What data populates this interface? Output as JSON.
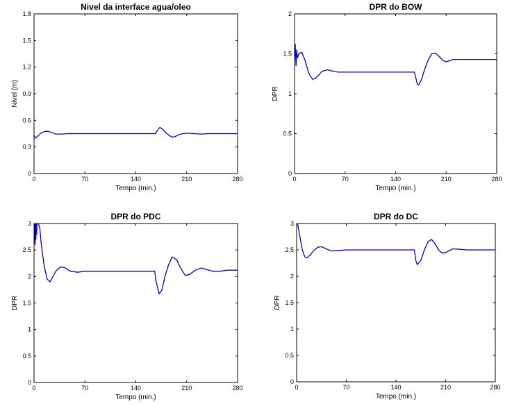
{
  "chart_data": [
    {
      "type": "line",
      "title": "Nivel da interface agua/oleo",
      "xlabel": "Tempo (min.)",
      "ylabel": "Nivel (m)",
      "xlim": [
        0,
        280
      ],
      "ylim": [
        0,
        1.8
      ],
      "xticks": [
        0,
        70,
        140,
        210,
        280
      ],
      "yticks": [
        0,
        0.3,
        0.6,
        0.9,
        1.2,
        1.5,
        1.8
      ],
      "xtick_labels": [
        "0",
        "70",
        "140",
        "210",
        "280"
      ],
      "ytick_labels": [
        "0",
        "0.3",
        "0.6",
        "0.9",
        "1.2",
        "1.5",
        "1.8"
      ],
      "grid": false,
      "series": [
        {
          "color": "#0000cc",
          "x": [
            0,
            2,
            5,
            10,
            15,
            20,
            25,
            30,
            38,
            45,
            60,
            90,
            120,
            150,
            167,
            170,
            173,
            177,
            180,
            186,
            190,
            195,
            200,
            205,
            210,
            220,
            230,
            240,
            250,
            280
          ],
          "y": [
            0.43,
            0.4,
            0.42,
            0.46,
            0.475,
            0.475,
            0.46,
            0.445,
            0.445,
            0.45,
            0.45,
            0.45,
            0.45,
            0.45,
            0.45,
            0.49,
            0.52,
            0.5,
            0.47,
            0.43,
            0.41,
            0.42,
            0.44,
            0.45,
            0.455,
            0.45,
            0.445,
            0.45,
            0.45,
            0.45
          ]
        }
      ]
    },
    {
      "type": "line",
      "title": "DPR do BOW",
      "xlabel": "Tempo (min.)",
      "ylabel": "DPR",
      "xlim": [
        0,
        280
      ],
      "ylim": [
        0,
        2
      ],
      "xticks": [
        0,
        70,
        140,
        210,
        280
      ],
      "yticks": [
        0,
        0.5,
        1,
        1.5,
        2
      ],
      "xtick_labels": [
        "0",
        "70",
        "140",
        "210",
        "280"
      ],
      "ytick_labels": [
        "0",
        "0.5",
        "1",
        "1.5",
        "2"
      ],
      "grid": false,
      "series": [
        {
          "color": "#0000cc",
          "x": [
            0,
            1,
            2,
            3,
            4,
            6,
            10,
            14,
            20,
            25,
            30,
            38,
            45,
            50,
            60,
            90,
            120,
            150,
            166,
            168,
            170,
            172,
            176,
            180,
            185,
            190,
            195,
            200,
            205,
            210,
            220,
            240,
            280
          ],
          "y": [
            1.45,
            1.62,
            1.35,
            1.55,
            1.45,
            1.5,
            1.52,
            1.43,
            1.25,
            1.18,
            1.2,
            1.28,
            1.3,
            1.29,
            1.27,
            1.27,
            1.27,
            1.27,
            1.27,
            1.2,
            1.12,
            1.11,
            1.18,
            1.3,
            1.42,
            1.5,
            1.51,
            1.47,
            1.42,
            1.4,
            1.43,
            1.43,
            1.43
          ]
        }
      ]
    },
    {
      "type": "line",
      "title": "DPR do PDC",
      "xlabel": "Tempo (min.)",
      "ylabel": "DPR",
      "xlim": [
        0,
        280
      ],
      "ylim": [
        0,
        3
      ],
      "xticks": [
        0,
        70,
        140,
        210,
        280
      ],
      "yticks": [
        0,
        0.5,
        1,
        1.5,
        2,
        2.5,
        3
      ],
      "xtick_labels": [
        "0",
        "70",
        "140",
        "210",
        "280"
      ],
      "ytick_labels": [
        "0",
        "0.5",
        "1",
        "1.5",
        "2",
        "2.5",
        "3"
      ],
      "grid": false,
      "series": [
        {
          "color": "#0000cc",
          "x": [
            0,
            1,
            1.5,
            2,
            2.5,
            3,
            3.5,
            4,
            5,
            6,
            8,
            10,
            14,
            18,
            22,
            26,
            30,
            36,
            42,
            50,
            60,
            70,
            100,
            130,
            166,
            168,
            172,
            176,
            180,
            185,
            190,
            196,
            202,
            208,
            214,
            222,
            230,
            238,
            246,
            256,
            266,
            280
          ],
          "y": [
            2.6,
            3.0,
            2.6,
            3.0,
            2.7,
            3.0,
            2.8,
            3.0,
            3.0,
            3.0,
            2.9,
            2.6,
            2.2,
            1.95,
            1.9,
            2.0,
            2.1,
            2.18,
            2.17,
            2.1,
            2.08,
            2.1,
            2.1,
            2.1,
            2.1,
            1.9,
            1.67,
            1.75,
            2.0,
            2.22,
            2.37,
            2.32,
            2.15,
            2.02,
            2.04,
            2.12,
            2.16,
            2.13,
            2.1,
            2.1,
            2.12,
            2.12
          ]
        }
      ]
    },
    {
      "type": "line",
      "title": "DPR do DC",
      "xlabel": "Tempo (min.)",
      "ylabel": "DPR",
      "xlim": [
        0,
        280
      ],
      "ylim": [
        0,
        3
      ],
      "xticks": [
        0,
        70,
        140,
        210,
        280
      ],
      "yticks": [
        0,
        0.5,
        1,
        1.5,
        2,
        2.5,
        3
      ],
      "xtick_labels": [
        "0",
        "70",
        "140",
        "210",
        "280"
      ],
      "ytick_labels": [
        "0",
        "0.5",
        "1",
        "1.5",
        "2",
        "2.5",
        "3"
      ],
      "grid": false,
      "series": [
        {
          "color": "#0000cc",
          "x": [
            0,
            2,
            4,
            6,
            8,
            10,
            12,
            15,
            20,
            25,
            30,
            35,
            40,
            45,
            50,
            60,
            70,
            100,
            130,
            160,
            166,
            168,
            170,
            175,
            180,
            185,
            190,
            195,
            200,
            205,
            210,
            220,
            230,
            240,
            280
          ],
          "y": [
            3.1,
            2.95,
            2.8,
            2.65,
            2.5,
            2.42,
            2.36,
            2.35,
            2.42,
            2.5,
            2.55,
            2.56,
            2.53,
            2.5,
            2.48,
            2.49,
            2.5,
            2.5,
            2.5,
            2.5,
            2.5,
            2.3,
            2.22,
            2.3,
            2.5,
            2.65,
            2.7,
            2.62,
            2.5,
            2.44,
            2.45,
            2.52,
            2.51,
            2.5,
            2.5
          ]
        }
      ]
    }
  ]
}
